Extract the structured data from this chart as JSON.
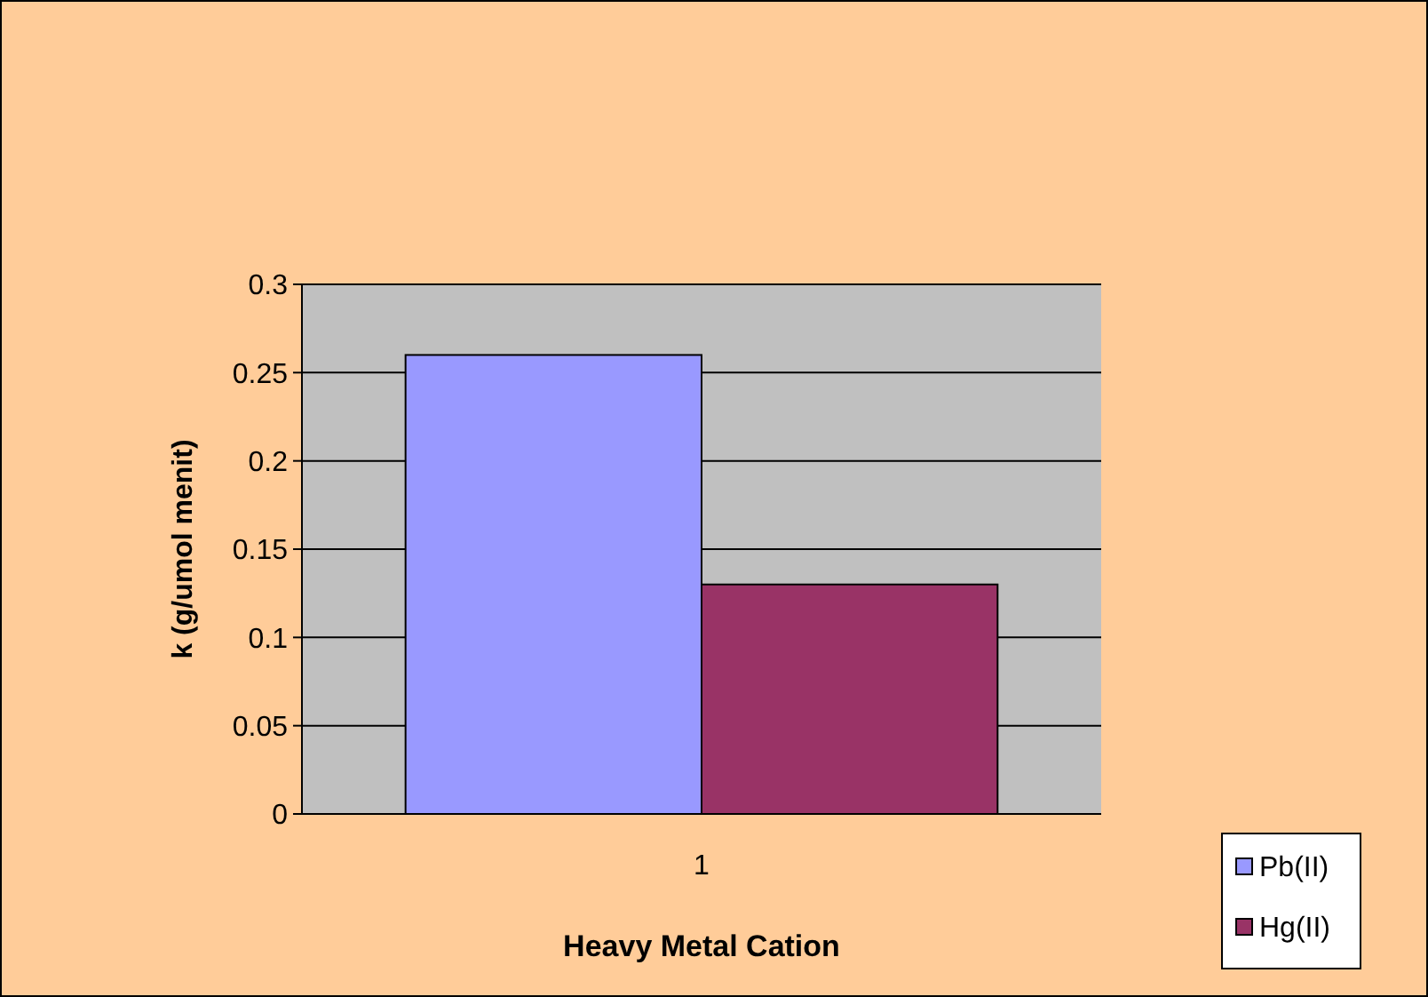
{
  "chart_data": {
    "type": "bar",
    "xlabel": "Heavy Metal Cation",
    "ylabel": "k (g/umol menit)",
    "categories": [
      "1"
    ],
    "series": [
      {
        "name": "Pb(II)",
        "color": "#9999ff",
        "values": [
          0.26
        ]
      },
      {
        "name": "Hg(II)",
        "color": "#993366",
        "values": [
          0.13
        ]
      }
    ],
    "ylim": [
      0,
      0.3
    ],
    "yticks": [
      0,
      0.05,
      0.1,
      0.15,
      0.2,
      0.25,
      0.3
    ],
    "grid": "y",
    "legend": "bottom right"
  }
}
